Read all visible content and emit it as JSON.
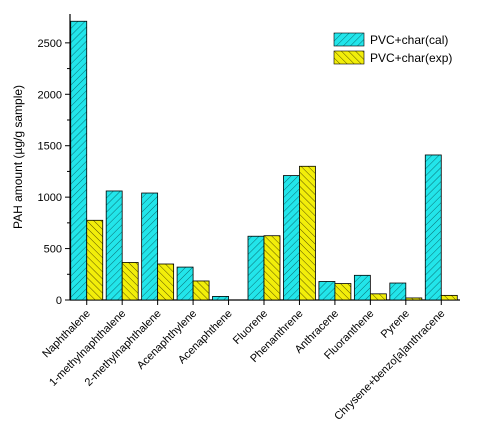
{
  "chart_data": {
    "type": "bar",
    "categories": [
      "Naphthalene",
      "1-methylnaphthalene",
      "2-methylnaphthalene",
      "Acenaphthylene",
      "Acenaphthene",
      "Fluorene",
      "Phenanthrene",
      "Anthracene",
      "Fluoranthene",
      "Pyrene",
      "Chrysene+benzo[a]anthracene"
    ],
    "series": [
      {
        "name": "PVC+char(cal)",
        "color": "#22e5ea",
        "values": [
          2710,
          1060,
          1040,
          320,
          35,
          620,
          1210,
          180,
          240,
          165,
          1410
        ]
      },
      {
        "name": "PVC+char(exp)",
        "color": "#f2ee0a",
        "values": [
          775,
          365,
          350,
          185,
          0,
          625,
          1300,
          160,
          60,
          20,
          45
        ]
      }
    ],
    "xlabel": "",
    "ylabel": "PAH amount (µg/g sample)",
    "ylim": [
      0,
      2800
    ],
    "yticks": [
      0,
      500,
      1000,
      1500,
      2000,
      2500
    ],
    "grid": false,
    "legend_position": "top-right"
  }
}
